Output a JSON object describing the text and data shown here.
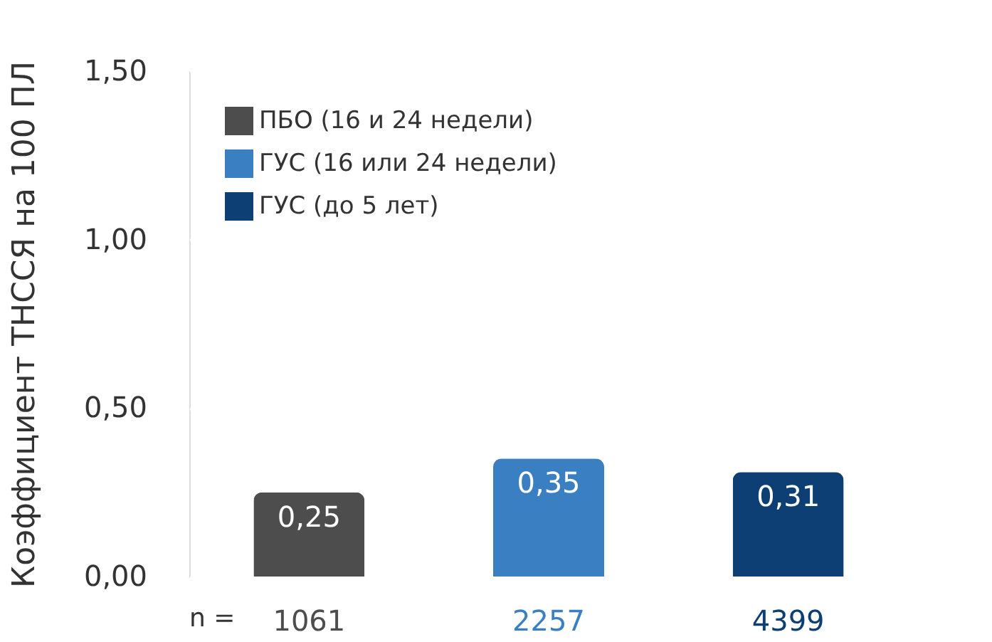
{
  "chart_data": {
    "type": "bar",
    "ylabel": "Коэффициент ТНССЯ на 100 ПЛ",
    "categories": [
      "1061",
      "2257",
      "4399"
    ],
    "series": [
      {
        "name": "ПБО (16 и 24 недели)",
        "color": "#4d4d4d",
        "values": [
          0.25,
          null,
          null
        ],
        "value_labels": [
          "0,25",
          null,
          null
        ]
      },
      {
        "name": "ГУС (16 или 24 недели)",
        "color": "#3a7fc1",
        "values": [
          null,
          0.35,
          null
        ],
        "value_labels": [
          null,
          "0,35",
          null
        ]
      },
      {
        "name": "ГУС (до 5 лет)",
        "color": "#0d3f74",
        "values": [
          null,
          null,
          0.31
        ],
        "value_labels": [
          null,
          null,
          "0,31"
        ]
      }
    ],
    "ylim": [
      0,
      1.5
    ],
    "yticks": [
      {
        "value": 0,
        "label": "0,00"
      },
      {
        "value": 0.5,
        "label": "0,50"
      },
      {
        "value": 1,
        "label": "1,00"
      },
      {
        "value": 1.5,
        "label": "1,50"
      }
    ],
    "grid": "y",
    "legend": "top left",
    "annotations": [
      "n ="
    ]
  }
}
